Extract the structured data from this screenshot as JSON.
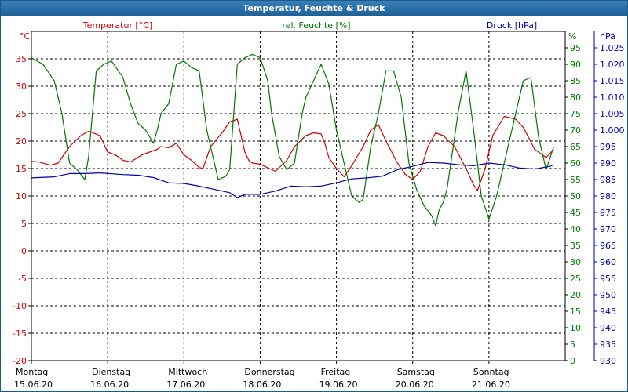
{
  "window": {
    "title": "Temperatur, Feuchte & Druck"
  },
  "colors": {
    "temperature": "#cc0000",
    "humidity": "#007700",
    "pressure": "#0000aa",
    "grid": "#000000",
    "title_bg": "#1e5e97"
  },
  "chart_data": {
    "type": "line",
    "title": "Temperatur, Feuchte & Druck",
    "grid": true,
    "x_labels": [
      {
        "day": "Montag",
        "date": "15.06.20"
      },
      {
        "day": "Dienstag",
        "date": "16.06.20"
      },
      {
        "day": "Mittwoch",
        "date": "17.06.20"
      },
      {
        "day": "Donnerstag",
        "date": "18.06.20"
      },
      {
        "day": "Freitag",
        "date": "19.06.20"
      },
      {
        "day": "Samstag",
        "date": "20.06.20"
      },
      {
        "day": "Sonntag",
        "date": "21.06.20"
      }
    ],
    "axes": {
      "temperature": {
        "label": "Temperatur [°C]",
        "unit": "°C",
        "ylim": [
          -20,
          40
        ],
        "ticks": [
          "35",
          "30",
          "25",
          "20",
          "15",
          "10",
          "5",
          "0",
          "-5",
          "-10",
          "-15",
          "-20"
        ]
      },
      "humidity": {
        "label": "rel. Feuchte [%]",
        "unit": "%",
        "ylim": [
          0,
          100
        ],
        "ticks": [
          "95",
          "90",
          "85",
          "80",
          "75",
          "70",
          "65",
          "60",
          "55",
          "50",
          "45",
          "40",
          "35",
          "30",
          "25",
          "20",
          "15",
          "10",
          "5",
          "0"
        ]
      },
      "pressure": {
        "label": "Druck [hPa]",
        "unit": "hPa",
        "ylim": [
          930,
          1030
        ],
        "ticks": [
          "1.025",
          "1.020",
          "1.015",
          "1.010",
          "1.005",
          "1.000",
          "995",
          "990",
          "985",
          "980",
          "975",
          "970",
          "965",
          "960",
          "955",
          "950",
          "945",
          "940",
          "935",
          "930"
        ]
      }
    },
    "series": [
      {
        "name": "Temperatur [°C]",
        "axis": "temperature",
        "x": [
          0,
          0.1,
          0.25,
          0.35,
          0.5,
          0.65,
          0.75,
          0.9,
          1.0,
          1.1,
          1.2,
          1.3,
          1.45,
          1.55,
          1.65,
          1.7,
          1.8,
          1.9,
          2.0,
          2.1,
          2.2,
          2.25,
          2.35,
          2.5,
          2.6,
          2.7,
          2.8,
          2.85,
          2.9,
          3.0,
          3.2,
          3.35,
          3.45,
          3.6,
          3.7,
          3.8,
          3.85,
          3.9,
          4.0,
          4.1,
          4.2,
          4.35,
          4.45,
          4.55,
          4.65,
          4.8,
          4.9,
          5.0,
          5.1,
          5.2,
          5.3,
          5.4,
          5.55,
          5.7,
          5.8,
          5.85,
          5.95,
          6.05,
          6.2,
          6.35,
          6.45,
          6.6,
          6.75,
          6.85
        ],
        "values": [
          16.3,
          16.2,
          15.6,
          16.0,
          19.0,
          21.0,
          21.8,
          21.0,
          18.0,
          17.5,
          16.5,
          16.2,
          17.5,
          18.0,
          18.5,
          19.0,
          18.8,
          19.6,
          17.5,
          16.5,
          15.2,
          15.0,
          19.0,
          21.5,
          23.5,
          24.0,
          18.0,
          16.5,
          16.0,
          15.8,
          14.5,
          16.5,
          19.0,
          21.0,
          21.5,
          21.3,
          19.5,
          17.0,
          15.0,
          13.5,
          15.5,
          19.0,
          22.0,
          23.0,
          20.0,
          16.0,
          14.0,
          13.0,
          14.5,
          19.0,
          21.5,
          21.0,
          19.0,
          15.0,
          12.0,
          11.0,
          15.0,
          21.0,
          24.5,
          24.0,
          22.5,
          18.5,
          17.0,
          18.5
        ]
      },
      {
        "name": "rel. Feuchte [%]",
        "axis": "humidity",
        "x": [
          0,
          0.15,
          0.3,
          0.4,
          0.5,
          0.6,
          0.7,
          0.75,
          0.85,
          0.95,
          1.05,
          1.2,
          1.3,
          1.4,
          1.5,
          1.6,
          1.65,
          1.7,
          1.8,
          1.9,
          2.0,
          2.1,
          2.2,
          2.3,
          2.45,
          2.55,
          2.6,
          2.7,
          2.8,
          2.9,
          3.0,
          3.1,
          3.15,
          3.25,
          3.35,
          3.45,
          3.55,
          3.6,
          3.7,
          3.8,
          3.9,
          4.0,
          4.1,
          4.2,
          4.3,
          4.35,
          4.45,
          4.55,
          4.65,
          4.75,
          4.85,
          4.95,
          5.05,
          5.15,
          5.25,
          5.3,
          5.35,
          5.4,
          5.45,
          5.5,
          5.6,
          5.7,
          5.8,
          5.9,
          6.0,
          6.1,
          6.2,
          6.3,
          6.45,
          6.55,
          6.65,
          6.75,
          6.85
        ],
        "values": [
          92,
          90,
          85,
          75,
          60,
          58,
          55,
          62,
          88,
          90,
          91,
          86,
          78,
          72,
          70,
          66,
          70,
          75,
          78,
          90,
          91,
          89,
          88,
          70,
          55,
          56,
          58,
          90,
          92,
          93,
          92,
          85,
          75,
          62,
          58,
          60,
          75,
          80,
          85,
          90,
          84,
          70,
          60,
          50,
          48,
          49,
          65,
          75,
          88,
          88,
          80,
          60,
          52,
          47,
          44,
          41,
          46,
          48,
          52,
          60,
          76,
          88,
          70,
          50,
          43,
          50,
          60,
          70,
          85,
          86,
          68,
          58,
          65
        ]
      },
      {
        "name": "Druck [hPa]",
        "axis": "pressure",
        "x": [
          0,
          0.3,
          0.5,
          0.7,
          0.9,
          1.2,
          1.4,
          1.6,
          1.8,
          2.0,
          2.2,
          2.4,
          2.6,
          2.7,
          2.8,
          3.0,
          3.2,
          3.4,
          3.6,
          3.8,
          4.0,
          4.2,
          4.4,
          4.6,
          4.8,
          5.0,
          5.2,
          5.4,
          5.6,
          5.8,
          6.0,
          6.2,
          6.4,
          6.6,
          6.8,
          6.85
        ],
        "values": [
          985.5,
          985.8,
          986.8,
          986.8,
          987.0,
          986.5,
          986.3,
          985.6,
          984.0,
          983.8,
          983.0,
          982.0,
          981.0,
          979.5,
          980.5,
          980.5,
          981.5,
          983.0,
          982.8,
          983.0,
          984.0,
          985.2,
          985.5,
          986.0,
          988.0,
          989.0,
          990.2,
          990.0,
          989.5,
          989.2,
          990.0,
          989.5,
          988.5,
          988.2,
          989.0,
          989.5
        ]
      }
    ]
  }
}
